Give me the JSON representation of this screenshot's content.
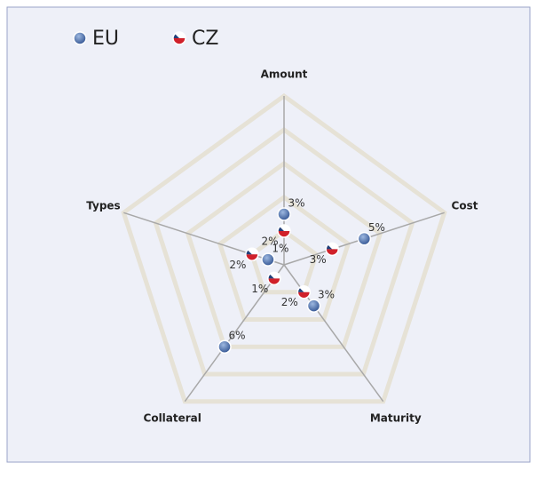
{
  "chart_data": {
    "type": "radar",
    "categories": [
      "Amount",
      "Cost",
      "Maturity",
      "Collateral",
      "Types"
    ],
    "series": [
      {
        "name": "EU",
        "color": "#3b5e9e",
        "values": [
          3,
          5,
          3,
          6,
          1
        ],
        "value_labels": [
          "3%",
          "5%",
          "3%",
          "6%",
          "1%"
        ]
      },
      {
        "name": "CZ",
        "color": "#d0202a",
        "values": [
          2,
          3,
          2,
          1,
          2
        ],
        "value_labels": [
          "2%",
          "3%",
          "2%",
          "1%",
          "2%"
        ]
      }
    ],
    "rlim": [
      0,
      10
    ],
    "grid": true,
    "legend": "top-left"
  }
}
